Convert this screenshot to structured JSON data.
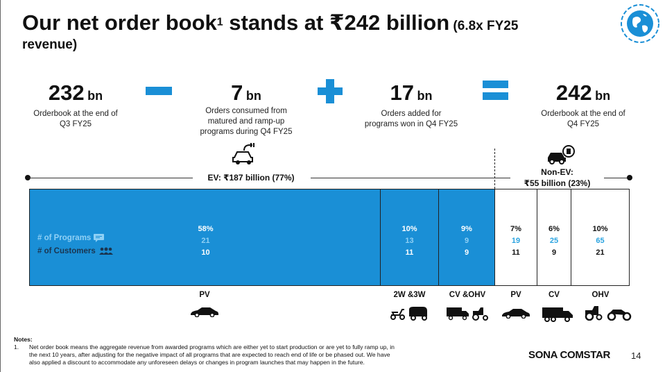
{
  "title": {
    "main": "Our net order book",
    "sup": "1",
    "main2": " stands at ₹242 billion",
    "small": " (6.8x FY25",
    "line2": "revenue)"
  },
  "stats": [
    {
      "num": "232",
      "unit": "bn",
      "desc1": "Orderbook at the end of",
      "desc2": "Q3 FY25",
      "desc3": ""
    },
    {
      "num": "7",
      "unit": "bn",
      "desc1": "Orders consumed from",
      "desc2": "matured and ramp-up",
      "desc3": "programs during Q4 FY25"
    },
    {
      "num": "17",
      "unit": "bn",
      "desc1": "Orders added for",
      "desc2": "programs won in Q4 FY25",
      "desc3": ""
    },
    {
      "num": "242",
      "unit": "bn",
      "desc1": "Orderbook at the end of",
      "desc2": "Q4 FY25",
      "desc3": ""
    }
  ],
  "ev_label": "EV: ₹187 billion (77%)",
  "nonev_label1": "Non-EV:",
  "nonev_label2": "₹55 billion (23%)",
  "legend": {
    "programs": "# of Programs",
    "customers": "# of Customers"
  },
  "segments": [
    {
      "pct": "58%",
      "programs": "21",
      "customers": "10",
      "category": "PV"
    },
    {
      "pct": "10%",
      "programs": "13",
      "customers": "11",
      "category": "2W &3W"
    },
    {
      "pct": "9%",
      "programs": "9",
      "customers": "9",
      "category": "CV &OHV"
    },
    {
      "pct": "7%",
      "programs": "19",
      "customers": "11",
      "category": "PV"
    },
    {
      "pct": "6%",
      "programs": "25",
      "customers": "9",
      "category": "CV"
    },
    {
      "pct": "10%",
      "programs": "65",
      "customers": "21",
      "category": "OHV"
    }
  ],
  "notes": {
    "heading": "Notes:",
    "num": "1.",
    "line1": "Net order book means the aggregate revenue from awarded programs which are either yet to start production or are yet to fully ramp up, in",
    "line2": "the next 10 years, after adjusting for the negative impact of all programs that are expected to reach end of life or be phased out. We have",
    "line3": "also applied a discount to accommodate any unforeseen delays or changes in program launches that may happen in the future."
  },
  "brand": "SONA COMSTAR",
  "page_number": "14",
  "colors": {
    "accent": "#1a8fd6",
    "light_accent": "#8fd0f5"
  }
}
